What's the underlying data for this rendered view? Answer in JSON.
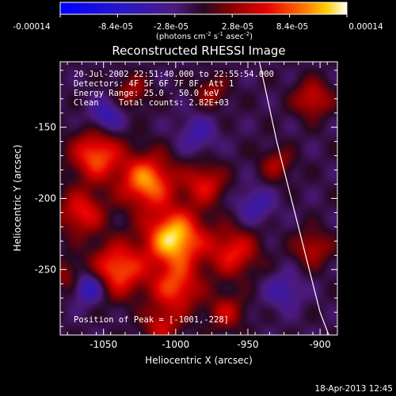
{
  "colorbar": {
    "tick_labels": [
      "-0.00014",
      "-8.4e-05",
      "-2.8e-05",
      "2.8e-05",
      "8.4e-05",
      "0.00014"
    ],
    "units_line": "(photons cm",
    "units_sup1": "-2",
    "units_mid1": " s",
    "units_sup2": "-1",
    "units_mid2": " asec",
    "units_sup3": "-2",
    "units_end": ")",
    "range": [
      -0.00014,
      0.00014
    ]
  },
  "overlay": {
    "line1": "20-Jul-2002 22:51:40.000 to 22:55:54.000",
    "line2": "Detectors: 4F 5F 6F 7F 8F, Att 1",
    "line3": "Energy Range: 25.0 - 50.0 keV",
    "line4": "Clean    Total counts: 2.82E+03",
    "peak": "Position of Peak = [-1001,-228]"
  },
  "footer": {
    "timestamp": "18-Apr-2013 12:45"
  },
  "colors": {
    "background": "#000000",
    "limb": "#ffffff"
  },
  "chart_data": {
    "type": "heatmap",
    "title": "Reconstructed RHESSI Image",
    "xlabel": "Heliocentric X (arcsec)",
    "ylabel": "Heliocentric Y (arcsec)",
    "xlim": [
      -1080,
      -888
    ],
    "ylim": [
      -296,
      -104
    ],
    "x_ticks": [
      -1050,
      -1000,
      -950,
      -900
    ],
    "y_ticks": [
      -150,
      -200,
      -250
    ],
    "x_tick_labels": [
      "-1050",
      "-1000",
      "-950",
      "-900"
    ],
    "y_tick_labels": [
      "-150",
      "-200",
      "-250"
    ],
    "peak": {
      "x": -1001,
      "y": -228
    },
    "limb_points": [
      [
        -942,
        -104
      ],
      [
        -930,
        -160
      ],
      [
        -915,
        -220
      ],
      [
        -900,
        -280
      ],
      [
        -894,
        -296
      ]
    ],
    "blobs": [
      {
        "x": -1001,
        "y": -228,
        "sigma": 14,
        "amp": 1.0
      },
      {
        "x": -1020,
        "y": -188,
        "sigma": 13,
        "amp": 0.82
      },
      {
        "x": -1055,
        "y": -170,
        "sigma": 12,
        "amp": 0.7
      },
      {
        "x": -1065,
        "y": -210,
        "sigma": 11,
        "amp": 0.55
      },
      {
        "x": -1040,
        "y": -250,
        "sigma": 13,
        "amp": 0.72
      },
      {
        "x": -1000,
        "y": -263,
        "sigma": 12,
        "amp": 0.62
      },
      {
        "x": -980,
        "y": -190,
        "sigma": 10,
        "amp": 0.5
      },
      {
        "x": -960,
        "y": -238,
        "sigma": 12,
        "amp": 0.55
      },
      {
        "x": -965,
        "y": -280,
        "sigma": 9,
        "amp": 0.4
      },
      {
        "x": -1010,
        "y": -290,
        "sigma": 9,
        "amp": 0.42
      },
      {
        "x": -905,
        "y": -130,
        "sigma": 9,
        "amp": 0.48
      },
      {
        "x": -930,
        "y": -176,
        "sigma": 8,
        "amp": 0.35
      },
      {
        "x": -905,
        "y": -235,
        "sigma": 9,
        "amp": 0.4
      },
      {
        "x": -975,
        "y": -125,
        "sigma": 8,
        "amp": 0.32
      },
      {
        "x": -1030,
        "y": -125,
        "sigma": 8,
        "amp": 0.35
      },
      {
        "x": -1075,
        "y": -255,
        "sigma": 8,
        "amp": 0.3
      },
      {
        "x": -1048,
        "y": -142,
        "sigma": 8,
        "amp": -0.4
      },
      {
        "x": -1060,
        "y": -262,
        "sigma": 8,
        "amp": -0.55
      },
      {
        "x": -985,
        "y": -155,
        "sigma": 9,
        "amp": -0.3
      },
      {
        "x": -945,
        "y": -205,
        "sigma": 9,
        "amp": -0.32
      },
      {
        "x": -925,
        "y": -265,
        "sigma": 9,
        "amp": -0.3
      }
    ]
  }
}
